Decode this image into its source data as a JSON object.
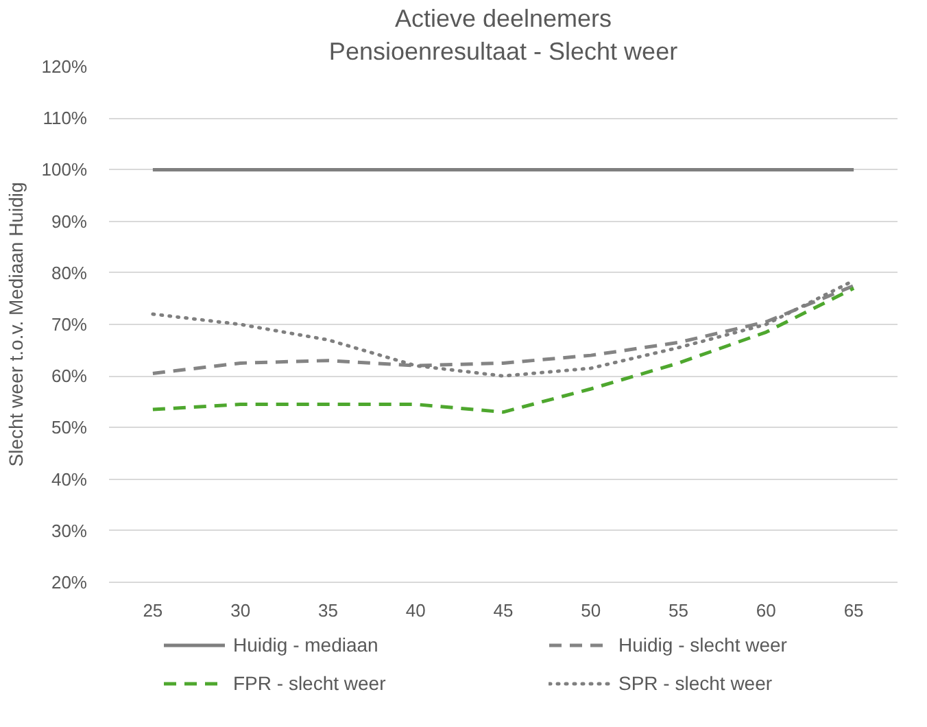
{
  "chart_data": {
    "type": "line",
    "title": "Actieve deelnemers",
    "subtitle": "Pensioenresultaat - Slecht weer",
    "ylabel": "Slecht weer t.o.v. Mediaan Huidig",
    "categories": [
      "25",
      "30",
      "35",
      "40",
      "45",
      "50",
      "55",
      "60",
      "65"
    ],
    "series": [
      {
        "name": "Huidig - mediaan",
        "color": "#7f7f7f",
        "line_style": "solid",
        "values": [
          100,
          100,
          100,
          100,
          100,
          100,
          100,
          100,
          100
        ]
      },
      {
        "name": "Huidig - slecht weer",
        "color": "#848484",
        "line_style": "dashed",
        "values": [
          60.5,
          62.5,
          63,
          62,
          62.5,
          64,
          66.5,
          70.5,
          77.5
        ]
      },
      {
        "name": "FPR - slecht weer",
        "color": "#4ea72e",
        "line_style": "dashed",
        "values": [
          53.5,
          54.5,
          54.5,
          54.5,
          53,
          57.5,
          62.5,
          68.5,
          77
        ]
      },
      {
        "name": "SPR - slecht weer",
        "color": "#7f7f7f",
        "line_style": "dotted",
        "values": [
          72,
          70,
          67,
          62,
          60,
          61.5,
          65.5,
          70,
          78.5
        ]
      }
    ],
    "ylim": [
      20,
      120
    ],
    "yticks": [
      {
        "value": 20,
        "label": "20%"
      },
      {
        "value": 30,
        "label": "30%"
      },
      {
        "value": 40,
        "label": "40%"
      },
      {
        "value": 50,
        "label": "50%"
      },
      {
        "value": 60,
        "label": "60%"
      },
      {
        "value": 70,
        "label": "70%"
      },
      {
        "value": 80,
        "label": "80%"
      },
      {
        "value": 90,
        "label": "90%"
      },
      {
        "value": 100,
        "label": "100%"
      },
      {
        "value": 110,
        "label": "110%"
      },
      {
        "value": 120,
        "label": "120%"
      }
    ],
    "grid": "y",
    "legend": "bottom"
  }
}
